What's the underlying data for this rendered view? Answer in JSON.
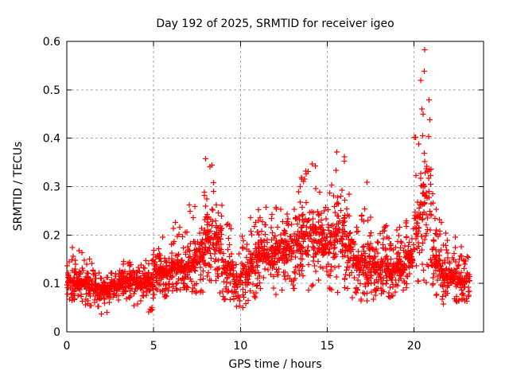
{
  "title": "Day 192 of 2025, SRMTID for receiver igeo",
  "colors": {
    "background": "#ffffff",
    "marker": "#ff0000",
    "grid": "#a8a8a8",
    "axis": "#000000",
    "text": "#000000"
  },
  "chart_data": {
    "type": "scatter",
    "title": "Day 192 of 2025, SRMTID for receiver igeo",
    "xlabel": "GPS time / hours",
    "ylabel": "SRMTID / TECUs",
    "xlim": [
      0,
      24
    ],
    "ylim": [
      0,
      0.6
    ],
    "xticks": [
      0,
      5,
      10,
      15,
      20
    ],
    "xtick_labels": [
      "0",
      "5",
      "10",
      "15",
      "20"
    ],
    "yticks": [
      0,
      0.1,
      0.2,
      0.3,
      0.4,
      0.5,
      0.6
    ],
    "ytick_labels": [
      "0",
      "0.1",
      "0.2",
      "0.3",
      "0.4",
      "0.5",
      "0.6"
    ],
    "grid": "dashed, at all major ticks",
    "legend": "none",
    "marker": "plus",
    "marker_color": "#ff0000",
    "series_name": "SRMTID",
    "x_data_range": [
      0,
      23.2
    ],
    "notable_features": [
      "dense noisy band near 0.08-0.15 TECUs through early hours 0-5",
      "local peak ~0.37 TECUs near 8.1 h",
      "sparser dip near 9.5-10 h with minima ~0.04",
      "broad elevated band 0.15-0.3 TECUs from 11-16 h",
      "spike to ~0.42 TECUs near 15.6 h",
      "largest spike reaching ~0.59 TECUs near 20.7 h",
      "declining tail 0.05-0.2 TECUs until data ends ~23.2 h"
    ],
    "density_bins": {
      "description": "Approximate distribution of the ~2500 scatter points, binned by GPS time. Each row: [t_start_h, t_end_h, count, y_min, y_max, y_dense_low, y_dense_high] with y in TECUs.",
      "columns": [
        "t_start",
        "t_end",
        "count",
        "y_min",
        "y_max",
        "y_dense_low",
        "y_dense_high"
      ],
      "rows": [
        [
          0.0,
          0.5,
          55,
          0.06,
          0.2,
          0.08,
          0.13
        ],
        [
          0.5,
          1.0,
          55,
          0.06,
          0.17,
          0.08,
          0.12
        ],
        [
          1.0,
          1.5,
          55,
          0.05,
          0.17,
          0.08,
          0.12
        ],
        [
          1.5,
          2.0,
          55,
          0.05,
          0.13,
          0.07,
          0.11
        ],
        [
          2.0,
          2.5,
          55,
          0.03,
          0.12,
          0.07,
          0.1
        ],
        [
          2.5,
          3.0,
          55,
          0.05,
          0.13,
          0.08,
          0.11
        ],
        [
          3.0,
          3.5,
          55,
          0.06,
          0.15,
          0.08,
          0.12
        ],
        [
          3.5,
          4.0,
          55,
          0.05,
          0.16,
          0.09,
          0.13
        ],
        [
          4.0,
          4.5,
          55,
          0.05,
          0.14,
          0.08,
          0.12
        ],
        [
          4.5,
          5.0,
          55,
          0.04,
          0.17,
          0.08,
          0.13
        ],
        [
          5.0,
          5.5,
          55,
          0.07,
          0.19,
          0.1,
          0.15
        ],
        [
          5.5,
          6.0,
          55,
          0.07,
          0.2,
          0.1,
          0.15
        ],
        [
          6.0,
          6.5,
          55,
          0.08,
          0.25,
          0.1,
          0.17
        ],
        [
          6.5,
          7.0,
          55,
          0.07,
          0.22,
          0.1,
          0.16
        ],
        [
          7.0,
          7.5,
          55,
          0.08,
          0.28,
          0.11,
          0.18
        ],
        [
          7.5,
          8.0,
          55,
          0.08,
          0.31,
          0.12,
          0.2
        ],
        [
          8.0,
          8.5,
          55,
          0.08,
          0.37,
          0.14,
          0.27
        ],
        [
          8.5,
          9.0,
          55,
          0.07,
          0.3,
          0.12,
          0.25
        ],
        [
          9.0,
          9.5,
          50,
          0.05,
          0.25,
          0.09,
          0.18
        ],
        [
          9.5,
          10.0,
          45,
          0.04,
          0.18,
          0.07,
          0.13
        ],
        [
          10.0,
          10.5,
          50,
          0.05,
          0.2,
          0.09,
          0.15
        ],
        [
          10.5,
          11.0,
          55,
          0.07,
          0.24,
          0.11,
          0.18
        ],
        [
          11.0,
          11.5,
          55,
          0.08,
          0.26,
          0.12,
          0.2
        ],
        [
          11.5,
          12.0,
          55,
          0.07,
          0.25,
          0.12,
          0.19
        ],
        [
          12.0,
          12.5,
          55,
          0.05,
          0.26,
          0.13,
          0.21
        ],
        [
          12.5,
          13.0,
          55,
          0.07,
          0.28,
          0.13,
          0.22
        ],
        [
          13.0,
          13.5,
          55,
          0.08,
          0.3,
          0.14,
          0.23
        ],
        [
          13.5,
          14.0,
          55,
          0.08,
          0.34,
          0.14,
          0.24
        ],
        [
          14.0,
          14.5,
          55,
          0.09,
          0.36,
          0.15,
          0.26
        ],
        [
          14.5,
          15.0,
          55,
          0.08,
          0.3,
          0.14,
          0.23
        ],
        [
          15.0,
          15.5,
          55,
          0.08,
          0.32,
          0.14,
          0.24
        ],
        [
          15.5,
          16.0,
          55,
          0.08,
          0.42,
          0.14,
          0.28
        ],
        [
          16.0,
          16.5,
          55,
          0.07,
          0.29,
          0.12,
          0.22
        ],
        [
          16.5,
          17.0,
          55,
          0.06,
          0.26,
          0.1,
          0.18
        ],
        [
          17.0,
          17.5,
          55,
          0.06,
          0.32,
          0.1,
          0.18
        ],
        [
          17.5,
          18.0,
          55,
          0.06,
          0.22,
          0.09,
          0.16
        ],
        [
          18.0,
          18.5,
          55,
          0.07,
          0.22,
          0.1,
          0.16
        ],
        [
          18.5,
          19.0,
          55,
          0.07,
          0.2,
          0.1,
          0.15
        ],
        [
          19.0,
          19.5,
          55,
          0.08,
          0.22,
          0.11,
          0.16
        ],
        [
          19.5,
          20.0,
          55,
          0.09,
          0.24,
          0.12,
          0.18
        ],
        [
          20.0,
          20.5,
          55,
          0.1,
          0.52,
          0.14,
          0.3
        ],
        [
          20.5,
          21.0,
          55,
          0.1,
          0.59,
          0.16,
          0.4
        ],
        [
          21.0,
          21.5,
          55,
          0.06,
          0.3,
          0.09,
          0.2
        ],
        [
          21.5,
          22.0,
          55,
          0.05,
          0.25,
          0.08,
          0.16
        ],
        [
          22.0,
          22.5,
          55,
          0.04,
          0.2,
          0.08,
          0.14
        ],
        [
          22.5,
          23.0,
          55,
          0.05,
          0.18,
          0.08,
          0.13
        ],
        [
          23.0,
          23.2,
          20,
          0.06,
          0.16,
          0.09,
          0.13
        ]
      ]
    }
  }
}
